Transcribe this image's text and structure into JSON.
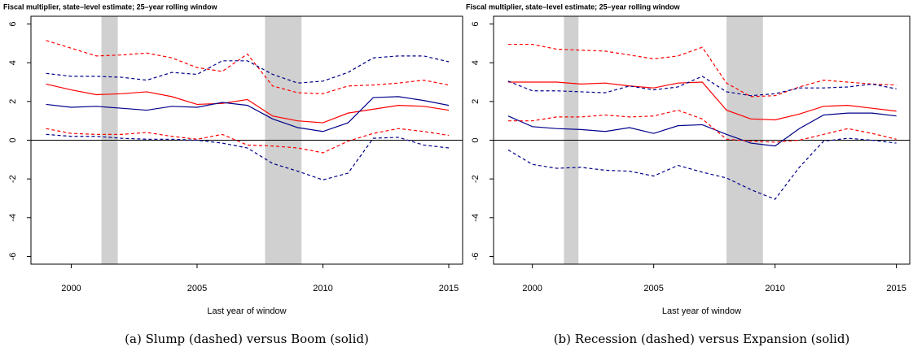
{
  "chart_data": [
    {
      "type": "line",
      "title": "Fiscal multiplier, state–level estimate; 25–year rolling window",
      "xlabel": "Last year of window",
      "caption": "(a)  Slump (dashed) versus Boom (solid)",
      "x": [
        1999,
        2000,
        2001,
        2002,
        2003,
        2004,
        2005,
        2006,
        2007,
        2008,
        2009,
        2010,
        2011,
        2012,
        2013,
        2014,
        2015
      ],
      "xlim": [
        1998.4,
        2015.55
      ],
      "xticks": [
        2000,
        2005,
        2010,
        2015
      ],
      "ylim": [
        -6.4,
        6.4
      ],
      "yticks": [
        -6,
        -4,
        -2,
        0,
        2,
        4,
        6
      ],
      "hline": 0,
      "shaded": [
        [
          2001.2,
          2001.85
        ],
        [
          2007.7,
          2009.15
        ]
      ],
      "shade_color": "#d0d0d0",
      "series": [
        {
          "color": "#ff0000",
          "dash": false,
          "values": [
            2.9,
            2.6,
            2.35,
            2.4,
            2.5,
            2.25,
            1.85,
            1.9,
            2.1,
            1.25,
            1.0,
            0.9,
            1.4,
            1.6,
            1.8,
            1.75,
            1.55
          ]
        },
        {
          "color": "#00008b",
          "dash": false,
          "values": [
            1.85,
            1.7,
            1.75,
            1.65,
            1.55,
            1.75,
            1.7,
            1.95,
            1.8,
            1.1,
            0.65,
            0.45,
            0.9,
            2.2,
            2.25,
            2.05,
            1.8
          ]
        },
        {
          "color": "#ff0000",
          "dash": true,
          "values": [
            5.15,
            4.75,
            4.35,
            4.4,
            4.5,
            4.25,
            3.75,
            3.55,
            4.45,
            2.8,
            2.45,
            2.4,
            2.8,
            2.85,
            2.95,
            3.1,
            2.85
          ]
        },
        {
          "color": "#ff0000",
          "dash": true,
          "values": [
            0.6,
            0.35,
            0.3,
            0.3,
            0.4,
            0.2,
            0.05,
            0.3,
            -0.25,
            -0.3,
            -0.4,
            -0.65,
            -0.05,
            0.35,
            0.6,
            0.45,
            0.25
          ]
        },
        {
          "color": "#00008b",
          "dash": true,
          "values": [
            3.45,
            3.3,
            3.3,
            3.25,
            3.1,
            3.5,
            3.4,
            4.1,
            4.1,
            3.4,
            2.95,
            3.05,
            3.5,
            4.25,
            4.35,
            4.35,
            4.05
          ]
        },
        {
          "color": "#00008b",
          "dash": true,
          "values": [
            0.3,
            0.2,
            0.2,
            0.1,
            0.05,
            0.05,
            0.0,
            -0.15,
            -0.4,
            -1.2,
            -1.6,
            -2.05,
            -1.7,
            0.1,
            0.15,
            -0.25,
            -0.4
          ]
        }
      ]
    },
    {
      "type": "line",
      "title": "Fiscal multiplier, state–level estimate; 25–year rolling window",
      "xlabel": "Last year of window",
      "caption": "(b)  Recession (dashed) versus Expansion (solid)",
      "x": [
        1999,
        2000,
        2001,
        2002,
        2003,
        2004,
        2005,
        2006,
        2007,
        2008,
        2009,
        2010,
        2011,
        2012,
        2013,
        2014,
        2015
      ],
      "xlim": [
        1998.4,
        2015.55
      ],
      "xticks": [
        2000,
        2005,
        2010,
        2015
      ],
      "ylim": [
        -6.4,
        6.4
      ],
      "yticks": [
        -6,
        -4,
        -2,
        0,
        2,
        4,
        6
      ],
      "hline": 0,
      "shaded": [
        [
          2001.3,
          2001.9
        ],
        [
          2008.0,
          2009.5
        ]
      ],
      "shade_color": "#d0d0d0",
      "series": [
        {
          "color": "#ff0000",
          "dash": false,
          "values": [
            3.0,
            3.0,
            3.0,
            2.9,
            2.95,
            2.8,
            2.7,
            2.95,
            3.0,
            1.55,
            1.1,
            1.05,
            1.35,
            1.75,
            1.8,
            1.65,
            1.5
          ]
        },
        {
          "color": "#00008b",
          "dash": false,
          "values": [
            1.25,
            0.7,
            0.6,
            0.55,
            0.45,
            0.65,
            0.35,
            0.75,
            0.8,
            0.3,
            -0.15,
            -0.3,
            0.6,
            1.3,
            1.4,
            1.4,
            1.25
          ]
        },
        {
          "color": "#ff0000",
          "dash": true,
          "values": [
            4.95,
            4.95,
            4.7,
            4.65,
            4.6,
            4.4,
            4.2,
            4.35,
            4.8,
            2.95,
            2.25,
            2.3,
            2.75,
            3.1,
            3.0,
            2.9,
            2.85
          ]
        },
        {
          "color": "#ff0000",
          "dash": true,
          "values": [
            1.0,
            1.0,
            1.2,
            1.2,
            1.3,
            1.2,
            1.25,
            1.55,
            1.1,
            0.05,
            -0.05,
            -0.1,
            0.0,
            0.3,
            0.6,
            0.35,
            0.05
          ]
        },
        {
          "color": "#00008b",
          "dash": true,
          "values": [
            3.05,
            2.55,
            2.55,
            2.5,
            2.45,
            2.8,
            2.6,
            2.75,
            3.3,
            2.5,
            2.3,
            2.4,
            2.7,
            2.7,
            2.75,
            2.9,
            2.65
          ]
        },
        {
          "color": "#00008b",
          "dash": true,
          "values": [
            -0.5,
            -1.25,
            -1.45,
            -1.4,
            -1.55,
            -1.6,
            -1.85,
            -1.3,
            -1.65,
            -1.95,
            -2.55,
            -3.05,
            -1.4,
            -0.05,
            0.1,
            0.0,
            -0.15
          ]
        }
      ]
    }
  ]
}
